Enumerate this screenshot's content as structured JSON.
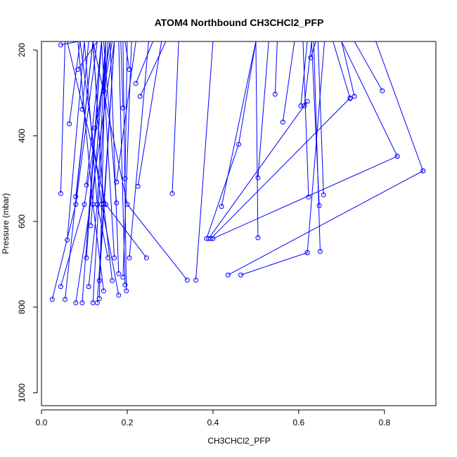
{
  "chart_data": {
    "type": "line",
    "title": "ATOM4 Northbound CH3CHCl2_PFP",
    "xlabel": "CH3CHCl2_PFP",
    "ylabel": "Pressure (mbar)",
    "xlim": [
      0,
      0.92
    ],
    "ylim": [
      1030,
      180
    ],
    "y_reversed": true,
    "x_ticks": [
      0,
      0.2,
      0.4,
      0.6,
      0.8
    ],
    "x_tick_labels": [
      "0.0",
      "0.2",
      "0.4",
      "0.6",
      "0.8"
    ],
    "y_ticks": [
      200,
      400,
      600,
      800,
      1000
    ],
    "y_tick_labels": [
      "200",
      "400",
      "600",
      "800",
      "1000"
    ],
    "grid": false,
    "line_color": "#0000ff",
    "profiles": [
      {
        "points": [
          [
            0.045,
            188
          ],
          [
            0.085,
            180
          ],
          [
            0.1,
            180
          ]
        ]
      },
      {
        "points": [
          [
            0.085,
            245
          ],
          [
            0.13,
            180
          ]
        ]
      },
      {
        "points": [
          [
            0.065,
            372
          ],
          [
            0.09,
            180
          ]
        ]
      },
      {
        "points": [
          [
            0.095,
            338
          ],
          [
            0.11,
            180
          ]
        ]
      },
      {
        "points": [
          [
            0.045,
            535
          ],
          [
            0.055,
            180
          ]
        ]
      },
      {
        "points": [
          [
            0.06,
            643
          ],
          [
            0.1,
            180
          ]
        ]
      },
      {
        "points": [
          [
            0.08,
            542
          ],
          [
            0.12,
            180
          ]
        ]
      },
      {
        "points": [
          [
            0.105,
            515
          ],
          [
            0.14,
            180
          ]
        ]
      },
      {
        "points": [
          [
            0.125,
            382
          ],
          [
            0.16,
            180
          ]
        ]
      },
      {
        "points": [
          [
            0.115,
            610
          ],
          [
            0.15,
            180
          ]
        ]
      },
      {
        "points": [
          [
            0.105,
            685
          ],
          [
            0.14,
            180
          ]
        ]
      },
      {
        "points": [
          [
            0.145,
            295
          ],
          [
            0.165,
            180
          ]
        ]
      },
      {
        "points": [
          [
            0.19,
            335
          ],
          [
            0.185,
            180
          ]
        ]
      },
      {
        "points": [
          [
            0.205,
            245
          ],
          [
            0.195,
            180
          ]
        ]
      },
      {
        "points": [
          [
            0.22,
            278
          ],
          [
            0.26,
            180
          ]
        ]
      },
      {
        "points": [
          [
            0.23,
            308
          ],
          [
            0.29,
            180
          ]
        ]
      },
      {
        "points": [
          [
            0.195,
            500
          ],
          [
            0.2,
            180
          ]
        ]
      },
      {
        "points": [
          [
            0.175,
            508
          ],
          [
            0.22,
            180
          ]
        ]
      },
      {
        "points": [
          [
            0.225,
            518
          ],
          [
            0.28,
            180
          ]
        ]
      },
      {
        "points": [
          [
            0.175,
            557
          ],
          [
            0.145,
            180
          ]
        ]
      },
      {
        "points": [
          [
            0.145,
            558
          ],
          [
            0.12,
            180
          ]
        ]
      },
      {
        "points": [
          [
            0.045,
            752
          ],
          [
            0.1,
            560
          ],
          [
            0.16,
            180
          ]
        ]
      },
      {
        "points": [
          [
            0.025,
            782
          ],
          [
            0.08,
            560
          ],
          [
            0.13,
            180
          ]
        ]
      },
      {
        "points": [
          [
            0.055,
            782
          ],
          [
            0.12,
            180
          ]
        ]
      },
      {
        "points": [
          [
            0.08,
            790
          ],
          [
            0.17,
            180
          ]
        ]
      },
      {
        "points": [
          [
            0.095,
            790
          ],
          [
            0.14,
            180
          ]
        ]
      },
      {
        "points": [
          [
            0.12,
            790
          ],
          [
            0.155,
            180
          ]
        ]
      },
      {
        "points": [
          [
            0.13,
            790
          ],
          [
            0.17,
            180
          ]
        ]
      },
      {
        "points": [
          [
            0.135,
            780
          ],
          [
            0.15,
            180
          ]
        ]
      },
      {
        "points": [
          [
            0.11,
            752
          ],
          [
            0.13,
            560
          ],
          [
            0.15,
            180
          ]
        ]
      },
      {
        "points": [
          [
            0.135,
            738
          ],
          [
            0.17,
            180
          ]
        ]
      },
      {
        "points": [
          [
            0.145,
            762
          ],
          [
            0.12,
            560
          ],
          [
            0.085,
            180
          ]
        ]
      },
      {
        "points": [
          [
            0.155,
            685
          ],
          [
            0.13,
            560
          ],
          [
            0.1,
            180
          ]
        ]
      },
      {
        "points": [
          [
            0.17,
            685
          ],
          [
            0.14,
            180
          ]
        ]
      },
      {
        "points": [
          [
            0.165,
            738
          ],
          [
            0.145,
            560
          ],
          [
            0.12,
            180
          ]
        ]
      },
      {
        "points": [
          [
            0.18,
            722
          ],
          [
            0.16,
            180
          ]
        ]
      },
      {
        "points": [
          [
            0.18,
            772
          ],
          [
            0.14,
            560
          ],
          [
            0.09,
            180
          ]
        ]
      },
      {
        "points": [
          [
            0.195,
            748
          ],
          [
            0.18,
            180
          ]
        ]
      },
      {
        "points": [
          [
            0.198,
            762
          ],
          [
            0.19,
            180
          ]
        ]
      },
      {
        "points": [
          [
            0.19,
            730
          ],
          [
            0.21,
            180
          ]
        ]
      },
      {
        "points": [
          [
            0.205,
            685
          ],
          [
            0.25,
            180
          ]
        ]
      },
      {
        "points": [
          [
            0.245,
            685
          ],
          [
            0.15,
            560
          ],
          [
            0.06,
            180
          ]
        ]
      },
      {
        "points": [
          [
            0.305,
            535
          ],
          [
            0.32,
            180
          ]
        ]
      },
      {
        "points": [
          [
            0.34,
            737
          ],
          [
            0.2,
            560
          ],
          [
            0.12,
            180
          ]
        ]
      },
      {
        "points": [
          [
            0.36,
            737
          ],
          [
            0.4,
            180
          ]
        ]
      },
      {
        "points": [
          [
            0.385,
            640
          ],
          [
            0.46,
            420
          ],
          [
            0.5,
            180
          ]
        ]
      },
      {
        "points": [
          [
            0.39,
            640
          ],
          [
            0.62,
            320
          ]
        ]
      },
      {
        "points": [
          [
            0.395,
            640
          ],
          [
            0.72,
            312
          ]
        ]
      },
      {
        "points": [
          [
            0.4,
            640
          ],
          [
            0.83,
            448
          ]
        ]
      },
      {
        "points": [
          [
            0.42,
            565
          ],
          [
            0.5,
            180
          ]
        ]
      },
      {
        "points": [
          [
            0.435,
            725
          ],
          [
            0.89,
            482
          ]
        ]
      },
      {
        "points": [
          [
            0.465,
            725
          ],
          [
            0.62,
            673
          ]
        ]
      },
      {
        "points": [
          [
            0.505,
            498
          ],
          [
            0.53,
            180
          ]
        ]
      },
      {
        "points": [
          [
            0.505,
            638
          ],
          [
            0.5,
            180
          ]
        ]
      },
      {
        "points": [
          [
            0.545,
            303
          ],
          [
            0.55,
            180
          ]
        ]
      },
      {
        "points": [
          [
            0.563,
            368
          ],
          [
            0.59,
            180
          ]
        ]
      },
      {
        "points": [
          [
            0.605,
            330
          ],
          [
            0.62,
            180
          ]
        ]
      },
      {
        "points": [
          [
            0.613,
            330
          ],
          [
            0.63,
            180
          ]
        ]
      },
      {
        "points": [
          [
            0.623,
            543
          ],
          [
            0.61,
            180
          ]
        ]
      },
      {
        "points": [
          [
            0.628,
            218
          ],
          [
            0.64,
            180
          ]
        ]
      },
      {
        "points": [
          [
            0.648,
            563
          ],
          [
            0.63,
            180
          ]
        ]
      },
      {
        "points": [
          [
            0.65,
            670
          ],
          [
            0.635,
            180
          ]
        ]
      },
      {
        "points": [
          [
            0.658,
            538
          ],
          [
            0.645,
            180
          ]
        ]
      },
      {
        "points": [
          [
            0.72,
            313
          ],
          [
            0.68,
            180
          ]
        ]
      },
      {
        "points": [
          [
            0.73,
            308
          ],
          [
            0.7,
            180
          ]
        ]
      },
      {
        "points": [
          [
            0.795,
            295
          ],
          [
            0.73,
            180
          ]
        ]
      },
      {
        "points": [
          [
            0.83,
            448
          ],
          [
            0.7,
            180
          ]
        ]
      },
      {
        "points": [
          [
            0.89,
            482
          ],
          [
            0.78,
            180
          ]
        ]
      },
      {
        "points": [
          [
            0.62,
            673
          ],
          [
            0.66,
            180
          ]
        ]
      }
    ]
  }
}
